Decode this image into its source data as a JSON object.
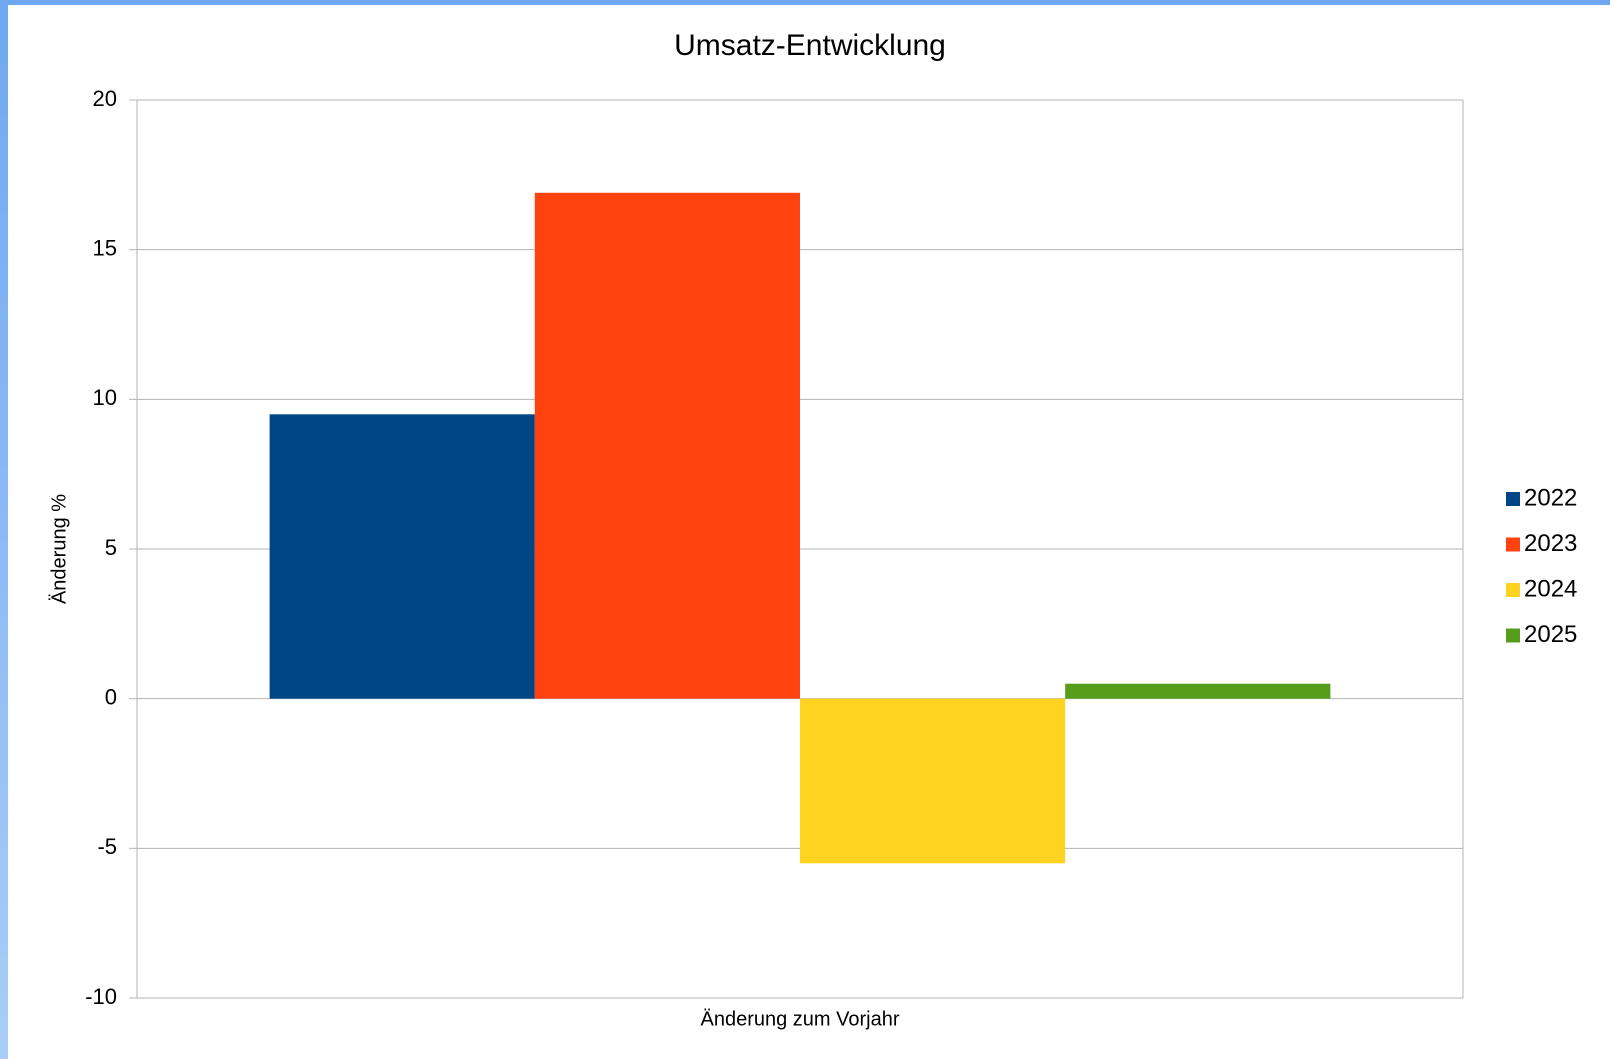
{
  "chart_data": {
    "type": "bar",
    "title": "Umsatz-Entwicklung",
    "categories": [
      "Änderung zum Vorjahr"
    ],
    "y_label": "Änderung %",
    "series": [
      {
        "name": "2022",
        "color": "#004586",
        "values": [
          9.5
        ]
      },
      {
        "name": "2023",
        "color": "#ff420e",
        "values": [
          16.9
        ]
      },
      {
        "name": "2024",
        "color": "#ffd320",
        "values": [
          -5.5
        ]
      },
      {
        "name": "2025",
        "color": "#579d1c",
        "values": [
          0.5
        ]
      }
    ],
    "ylim": [
      -10,
      20
    ],
    "yticks": [
      -10,
      -5,
      0,
      5,
      10,
      15,
      20
    ],
    "grid": true,
    "legend": "right"
  }
}
